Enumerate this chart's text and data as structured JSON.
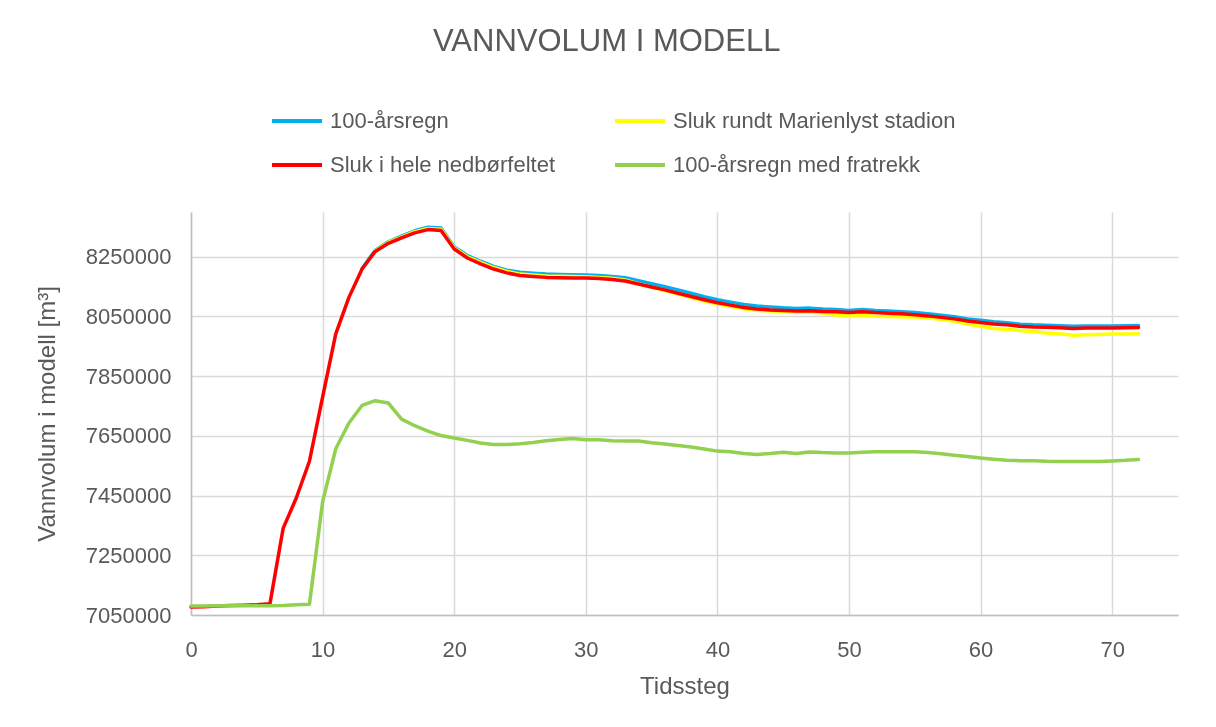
{
  "chart_data": {
    "type": "line",
    "title": "VANNVOLUM I MODELL",
    "xlabel": "Tidssteg",
    "ylabel": "Vannvolum i modell [m³]",
    "x": [
      0,
      1,
      2,
      3,
      4,
      5,
      6,
      7,
      8,
      9,
      10,
      11,
      12,
      13,
      14,
      15,
      16,
      17,
      18,
      19,
      20,
      21,
      22,
      23,
      24,
      25,
      26,
      27,
      28,
      29,
      30,
      31,
      32,
      33,
      34,
      35,
      36,
      37,
      38,
      39,
      40,
      41,
      42,
      43,
      44,
      45,
      46,
      47,
      48,
      49,
      50,
      51,
      52,
      53,
      54,
      55,
      56,
      57,
      58,
      59,
      60,
      61,
      62,
      63,
      64,
      65,
      66,
      67,
      68,
      69,
      70,
      71,
      72
    ],
    "xlim": [
      0,
      75
    ],
    "xticks": [
      0,
      10,
      20,
      30,
      40,
      50,
      60,
      70
    ],
    "ylim": [
      7050000,
      8400000
    ],
    "yticks": [
      7050000,
      7250000,
      7450000,
      7650000,
      7850000,
      8050000,
      8250000
    ],
    "grid": true,
    "legend": "top",
    "line_style": "solid",
    "series": [
      {
        "name": "100-årsregn",
        "color": "#00b0f0",
        "values": [
          null,
          null,
          null,
          null,
          null,
          null,
          null,
          null,
          null,
          null,
          null,
          null,
          null,
          8211000,
          8272000,
          8300000,
          8319000,
          8337000,
          8349000,
          8346000,
          8283000,
          8254000,
          8235000,
          8218000,
          8205000,
          8198000,
          8195000,
          8192000,
          8191000,
          8190000,
          8189000,
          8187000,
          8184000,
          8180000,
          8170000,
          8160000,
          8150000,
          8139000,
          8128000,
          8116000,
          8106000,
          8098000,
          8090000,
          8085000,
          8082000,
          8079000,
          8077000,
          8078000,
          8075000,
          8073000,
          8070000,
          8073000,
          8070000,
          8068000,
          8066000,
          8063000,
          8059000,
          8054000,
          8049000,
          8042000,
          8037000,
          8032000,
          8029000,
          8024000,
          8022000,
          8021000,
          8019000,
          8017000,
          8018000,
          8018000,
          8018000,
          8019000,
          8020000
        ]
      },
      {
        "name": "Sluk rundt Marienlyst stadion",
        "color": "#ffff00",
        "values": [
          null,
          null,
          null,
          null,
          null,
          null,
          null,
          null,
          null,
          null,
          null,
          null,
          null,
          null,
          8270000,
          8298000,
          8316000,
          8334000,
          8345000,
          8342000,
          8280000,
          8250000,
          8231000,
          8214000,
          8201000,
          8192000,
          8189000,
          8186000,
          8185000,
          8184000,
          8183000,
          8181000,
          8178000,
          8172000,
          8160000,
          8148000,
          8137000,
          8125000,
          8113000,
          8102000,
          8092000,
          8084000,
          8076000,
          8071000,
          8068000,
          8066000,
          8064000,
          8065000,
          8062000,
          8055000,
          8052000,
          8054000,
          8051000,
          8050000,
          8049000,
          8048000,
          8045000,
          8041000,
          8034000,
          8025000,
          8017000,
          8010000,
          8006000,
          8003000,
          7999000,
          7995000,
          7992000,
          7987000,
          7989000,
          7990000,
          7991000,
          7991000,
          7992000
        ]
      },
      {
        "name": "Sluk i hele nedbørfeltet",
        "color": "#ff0000",
        "values": [
          7077000,
          7078000,
          7080000,
          7082000,
          7083000,
          7084000,
          7088000,
          7340000,
          7442000,
          7565000,
          7780000,
          7992000,
          8114000,
          8209000,
          8268000,
          8295000,
          8313000,
          8330000,
          8341000,
          8338000,
          8276000,
          8246000,
          8226000,
          8209000,
          8196000,
          8187000,
          8184000,
          8181000,
          8180000,
          8179000,
          8179000,
          8177000,
          8174000,
          8169000,
          8159000,
          8149000,
          8139000,
          8128000,
          8117000,
          8106000,
          8096000,
          8088000,
          8080000,
          8075000,
          8072000,
          8070000,
          8068000,
          8069000,
          8067000,
          8066000,
          8063000,
          8066000,
          8063000,
          8061000,
          8059000,
          8056000,
          8052000,
          8047000,
          8042000,
          8035000,
          8030000,
          8025000,
          8022000,
          8017000,
          8015000,
          8014000,
          8012000,
          8010000,
          8011000,
          8011000,
          8011000,
          8012000,
          8013000
        ]
      },
      {
        "name": "100-årsregn med fratrekk",
        "color": "#92d050",
        "values": [
          7080000,
          7080000,
          7081000,
          7081000,
          7081000,
          7081000,
          7081000,
          7082000,
          7084000,
          7086000,
          7429000,
          7607000,
          7693000,
          7752000,
          7768000,
          7760000,
          7706000,
          7684000,
          7666000,
          7651000,
          7643000,
          7635000,
          7626000,
          7621000,
          7621000,
          7624000,
          7628000,
          7634000,
          7638000,
          7641000,
          7637000,
          7637000,
          7634000,
          7633000,
          7633000,
          7627000,
          7623000,
          7618000,
          7613000,
          7606000,
          7599000,
          7597000,
          7591000,
          7588000,
          7591000,
          7595000,
          7591000,
          7596000,
          7594000,
          7593000,
          7593000,
          7595000,
          7597000,
          7597000,
          7597000,
          7597000,
          7594000,
          7590000,
          7585000,
          7581000,
          7576000,
          7572000,
          7568000,
          7567000,
          7567000,
          7565000,
          7564000,
          7564000,
          7564000,
          7564000,
          7566000,
          7568000,
          7571000
        ]
      }
    ]
  }
}
